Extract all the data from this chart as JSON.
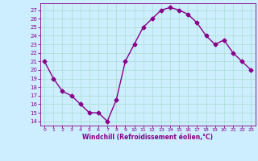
{
  "x": [
    0,
    1,
    2,
    3,
    4,
    5,
    6,
    7,
    8,
    9,
    10,
    11,
    12,
    13,
    14,
    15,
    16,
    17,
    18,
    19,
    20,
    21,
    22,
    23
  ],
  "y": [
    21,
    19,
    17.5,
    17,
    16,
    15,
    15,
    14,
    16.5,
    21,
    23,
    25,
    26,
    27,
    27.3,
    27,
    26.5,
    25.5,
    24,
    23,
    23.5,
    22,
    21,
    20
  ],
  "line_color": "#880088",
  "marker": "D",
  "marker_size": 2.5,
  "bg_color": "#cceeff",
  "grid_color": "#aaddcc",
  "xlabel": "Windchill (Refroidissement éolien,°C)",
  "xlabel_color": "#880088",
  "tick_color": "#880088",
  "ylim": [
    13.5,
    27.8
  ],
  "xlim": [
    -0.5,
    23.5
  ],
  "yticks": [
    14,
    15,
    16,
    17,
    18,
    19,
    20,
    21,
    22,
    23,
    24,
    25,
    26,
    27
  ],
  "xticks": [
    0,
    1,
    2,
    3,
    4,
    5,
    6,
    7,
    8,
    9,
    10,
    11,
    12,
    13,
    14,
    15,
    16,
    17,
    18,
    19,
    20,
    21,
    22,
    23
  ],
  "line_width": 1.0
}
